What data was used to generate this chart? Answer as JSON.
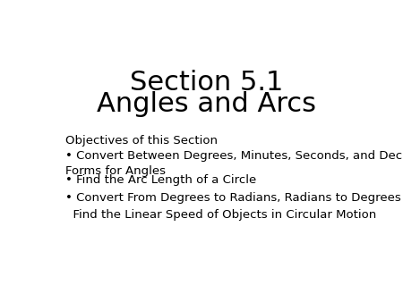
{
  "title_line1": "Section 5.1",
  "title_line2": "Angles and Arcs",
  "title_fontsize": 22,
  "title_color": "#000000",
  "background_color": "#ffffff",
  "objectives_label": "Objectives of this Section",
  "objectives_fontsize": 9.5,
  "bullet_items": [
    "• Convert Between Degrees, Minutes, Seconds, and Decimal\nForms for Angles",
    "• Find the Arc Length of a Circle",
    "• Convert From Degrees to Radians, Radians to Degrees",
    "  Find the Linear Speed of Objects in Circular Motion"
  ],
  "bullet_fontsize": 9.5,
  "text_color": "#000000",
  "figsize": [
    4.5,
    3.38
  ],
  "dpi": 100
}
